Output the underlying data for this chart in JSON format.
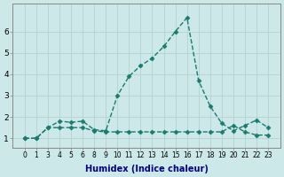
{
  "xlabel": "Humidex (Indice chaleur)",
  "background_color": "#cde8e8",
  "line_color": "#1a7a6e",
  "grid_color": "#b8d4d4",
  "x_labels": [
    "0",
    "1",
    "3",
    "4",
    "5",
    "6",
    "8",
    "9",
    "10",
    "11",
    "12",
    "13",
    "14",
    "15",
    "16",
    "17",
    "18",
    "19",
    "20",
    "21",
    "22",
    "23"
  ],
  "y_upper": [
    1.0,
    1.0,
    1.5,
    1.8,
    1.75,
    1.8,
    1.4,
    1.35,
    3.0,
    3.9,
    4.4,
    4.75,
    5.3,
    6.0,
    6.65,
    3.7,
    2.5,
    1.7,
    1.35,
    1.6,
    1.85,
    1.5
  ],
  "y_lower": [
    1.0,
    1.0,
    1.5,
    1.5,
    1.5,
    1.5,
    1.35,
    1.3,
    1.3,
    1.3,
    1.3,
    1.3,
    1.3,
    1.3,
    1.3,
    1.3,
    1.3,
    1.3,
    1.6,
    1.3,
    1.15,
    1.15
  ],
  "ylim": [
    0.55,
    7.3
  ],
  "yticks": [
    1,
    2,
    3,
    4,
    5,
    6
  ],
  "marker": "D",
  "markersize": 2.5,
  "linewidth": 1.0,
  "xlabel_color": "#00007f",
  "xlabel_fontsize": 7,
  "tick_fontsize": 5.5,
  "ytick_fontsize": 6.5
}
